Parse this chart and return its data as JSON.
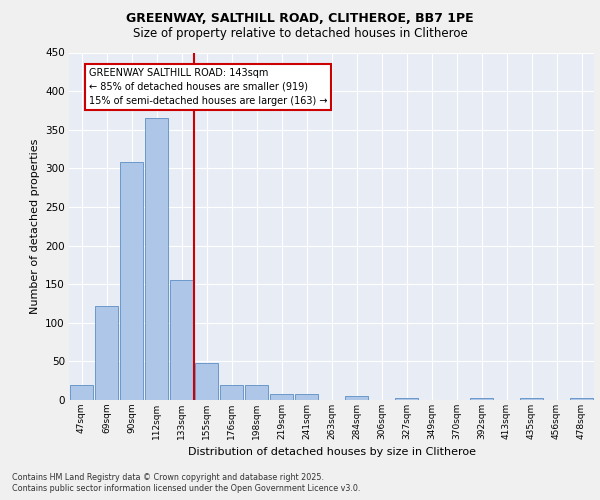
{
  "title_line1": "GREENWAY, SALTHILL ROAD, CLITHEROE, BB7 1PE",
  "title_line2": "Size of property relative to detached houses in Clitheroe",
  "xlabel": "Distribution of detached houses by size in Clitheroe",
  "ylabel": "Number of detached properties",
  "categories": [
    "47sqm",
    "69sqm",
    "90sqm",
    "112sqm",
    "133sqm",
    "155sqm",
    "176sqm",
    "198sqm",
    "219sqm",
    "241sqm",
    "263sqm",
    "284sqm",
    "306sqm",
    "327sqm",
    "349sqm",
    "370sqm",
    "392sqm",
    "413sqm",
    "435sqm",
    "456sqm",
    "478sqm"
  ],
  "values": [
    20,
    122,
    308,
    365,
    155,
    48,
    20,
    20,
    8,
    8,
    0,
    5,
    0,
    2,
    0,
    0,
    2,
    0,
    2,
    0,
    2
  ],
  "bar_color": "#aec6e8",
  "bar_edge_color": "#5b8ec4",
  "vline_x": 4.5,
  "vline_color": "#cc0000",
  "annotation_text": "GREENWAY SALTHILL ROAD: 143sqm\n← 85% of detached houses are smaller (919)\n15% of semi-detached houses are larger (163) →",
  "annotation_box_color": "#ffffff",
  "annotation_box_edge": "#cc0000",
  "ylim": [
    0,
    450
  ],
  "yticks": [
    0,
    50,
    100,
    150,
    200,
    250,
    300,
    350,
    400,
    450
  ],
  "footer_line1": "Contains HM Land Registry data © Crown copyright and database right 2025.",
  "footer_line2": "Contains public sector information licensed under the Open Government Licence v3.0.",
  "fig_bg_color": "#f0f0f0",
  "plot_bg_color": "#e8edf5"
}
